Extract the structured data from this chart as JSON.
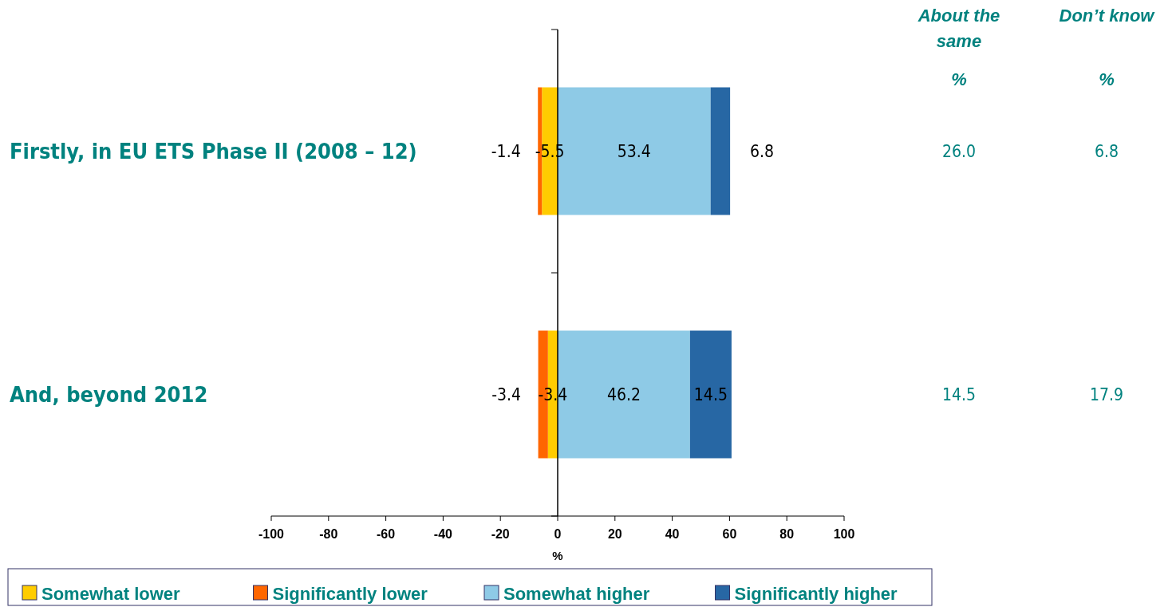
{
  "chart_data": [
    {
      "type": "bar",
      "orientation": "horizontal",
      "stacked": true,
      "categories": [
        "Firstly, in EU ETS Phase II (2008 – 12)",
        "And, beyond 2012"
      ],
      "series": [
        {
          "name": "Somewhat lower",
          "color": "#ffcc00",
          "values": [
            -5.5,
            -3.4
          ]
        },
        {
          "name": "Significantly lower",
          "color": "#ff6600",
          "values": [
            -1.4,
            -3.4
          ]
        },
        {
          "name": "Somewhat higher",
          "color": "#8ecae6",
          "values": [
            53.4,
            46.2
          ]
        },
        {
          "name": "Significantly higher",
          "color": "#2767a4",
          "values": [
            6.8,
            14.5
          ]
        }
      ],
      "xlim": [
        -100,
        100
      ],
      "xticks": [
        -100,
        -80,
        -60,
        -40,
        -20,
        0,
        20,
        40,
        60,
        80,
        100
      ],
      "xlabel": "%",
      "data_labels": true,
      "legend": "bottom"
    },
    {
      "type": "other",
      "categories": [
        "About the same",
        "Don’t know"
      ],
      "ylabel": "%",
      "series": [
        {
          "values": [
            26.0,
            6.8
          ],
          "value_labels": [
            "26.0",
            "6.8"
          ]
        },
        {
          "values": [
            14.5,
            17.9
          ],
          "value_labels": [
            "14.5",
            "17.9"
          ]
        }
      ]
    }
  ]
}
